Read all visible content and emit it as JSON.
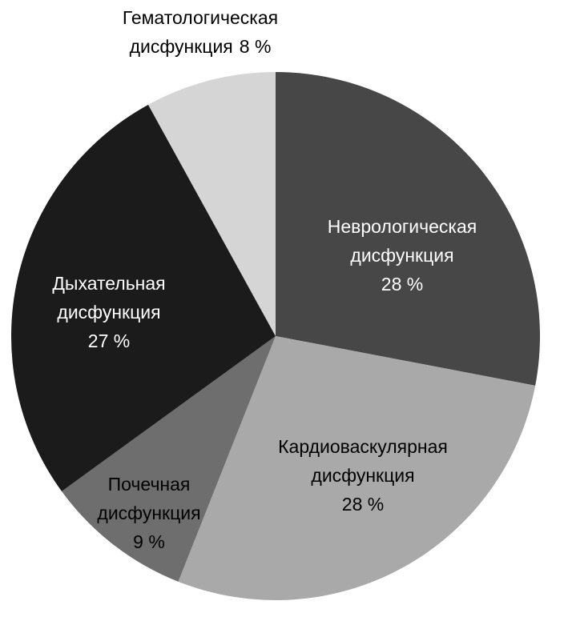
{
  "chart_data": {
    "type": "pie",
    "categories": [
      "Неврологическая дисфункция",
      "Кардиоваскулярная дисфункция",
      "Почечная дисфункция",
      "Дыхательная дисфункция",
      "Гематологическая дисфункция"
    ],
    "values": [
      28,
      28,
      9,
      27,
      8
    ],
    "value_labels": [
      "28 %",
      "28 %",
      "9 %",
      "27 %",
      "8 %"
    ],
    "colors": [
      "#474747",
      "#a9a9a9",
      "#6e6e6e",
      "#1b1b1b",
      "#d5d5d5"
    ]
  }
}
